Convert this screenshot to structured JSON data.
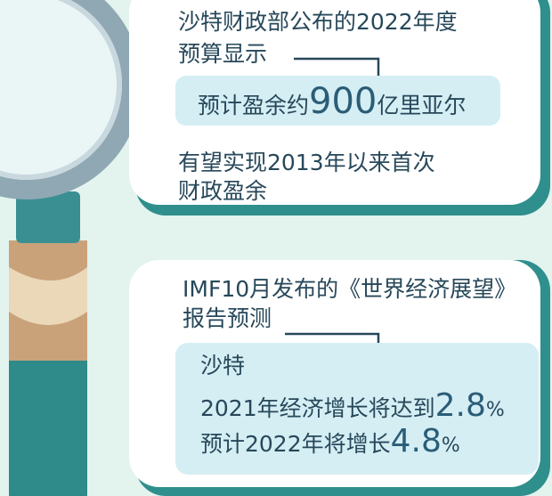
{
  "card1": {
    "lines": [
      "沙特财政部公布的2022年度",
      "预算显示"
    ],
    "highlight": {
      "prefix": "预计盈余约",
      "number": "900",
      "suffix": "亿里亚尔"
    },
    "note": [
      "有望实现2013年以来首次",
      "财政盈余"
    ]
  },
  "card2": {
    "lines": [
      "IMF10月发布的《世界经济展望》",
      "报告预测"
    ],
    "box": {
      "title": "沙特",
      "rows": [
        {
          "prefix": "2021年经济增长将达到",
          "number": "2.8",
          "suffix": "%"
        },
        {
          "prefix": "预计2022年将增长",
          "number": "4.8",
          "suffix": "%"
        }
      ]
    }
  }
}
